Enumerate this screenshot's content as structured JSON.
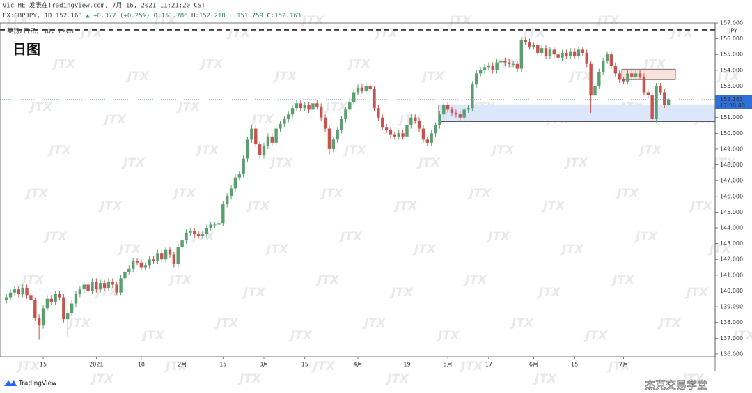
{
  "header": {
    "line1": "Vic-HE 发表在TradingView.com, 7月 16, 2021 11:21:20 CST",
    "symbol": "FX:GBPJPY, 1D",
    "change": "▲ +0.377 (+0.25%)",
    "ohlc_labels": [
      "O:",
      "H:",
      "L:",
      "C:"
    ]
  },
  "watermark": "JTX",
  "footer": {
    "brand": "TradingView",
    "credit": "杰克交易学堂"
  },
  "chart_data": {
    "type": "candlestick",
    "title": "日图",
    "subtitle": "英镑/日元, 1D, FXCM",
    "categories": [
      null,
      null,
      null,
      null,
      null,
      null,
      null,
      null,
      null,
      "15",
      null,
      null,
      null,
      null,
      null,
      null,
      null,
      null,
      null,
      null,
      null,
      null,
      "2021",
      null,
      null,
      null,
      null,
      null,
      null,
      null,
      null,
      null,
      null,
      "18",
      null,
      null,
      null,
      null,
      null,
      null,
      null,
      null,
      null,
      "2月",
      null,
      null,
      null,
      null,
      null,
      null,
      null,
      null,
      null,
      "15",
      null,
      null,
      null,
      null,
      null,
      null,
      null,
      null,
      null,
      "3月",
      null,
      null,
      null,
      null,
      null,
      null,
      null,
      null,
      null,
      "15",
      null,
      null,
      null,
      null,
      null,
      null,
      null,
      null,
      null,
      null,
      null,
      null,
      "4月",
      null,
      null,
      null,
      null,
      null,
      null,
      null,
      null,
      null,
      null,
      null,
      "19",
      null,
      null,
      null,
      null,
      null,
      null,
      null,
      null,
      null,
      "5月",
      null,
      null,
      null,
      null,
      null,
      null,
      null,
      null,
      null,
      "17",
      null,
      null,
      null,
      null,
      null,
      null,
      null,
      null,
      null,
      null,
      "6月",
      null,
      null,
      null,
      null,
      null,
      null,
      null,
      null,
      null,
      "15",
      null,
      null,
      null,
      null,
      null,
      null,
      null,
      null,
      null,
      null,
      null,
      "7月",
      null,
      null,
      null,
      null,
      null,
      null,
      null,
      null,
      null,
      null,
      null
    ],
    "open": [
      139.4,
      139.6,
      139.9,
      140.1,
      139.8,
      140.2,
      139.7,
      139.4,
      138.3,
      137.8,
      138.9,
      139.5,
      139.3,
      139.8,
      139.6,
      138.2,
      138.6,
      139.2,
      139.8,
      140.1,
      140.4,
      140.0,
      140.6,
      140.1,
      140.5,
      140.2,
      140.6,
      140.4,
      139.9,
      140.8,
      141.2,
      141.4,
      141.9,
      141.8,
      141.5,
      141.6,
      142.0,
      141.9,
      142.4,
      142.0,
      142.6,
      142.3,
      141.7,
      142.8,
      143.2,
      143.7,
      143.8,
      143.6,
      143.5,
      143.6,
      144.0,
      144.2,
      144.2,
      144.3,
      145.5,
      146.0,
      146.5,
      147.2,
      147.4,
      148.4,
      149.6,
      150.3,
      149.3,
      148.6,
      149.2,
      149.8,
      149.4,
      150.3,
      150.6,
      150.9,
      151.2,
      151.6,
      151.9,
      151.6,
      151.8,
      151.5,
      151.9,
      151.7,
      151.0,
      150.3,
      149.0,
      149.6,
      150.2,
      150.9,
      151.5,
      152.0,
      152.6,
      152.9,
      152.7,
      153.0,
      152.8,
      151.6,
      151.0,
      150.4,
      150.2,
      149.9,
      149.8,
      150.0,
      149.8,
      150.5,
      151.0,
      150.8,
      150.3,
      149.6,
      149.4,
      150.0,
      150.5,
      151.2,
      151.8,
      151.5,
      151.3,
      151.2,
      151.0,
      151.5,
      151.6,
      153.1,
      153.8,
      154.0,
      154.2,
      154.3,
      154.0,
      154.5,
      154.6,
      154.5,
      154.4,
      154.4,
      154.1,
      155.9,
      155.8,
      155.5,
      155.6,
      155.1,
      155.4,
      154.9,
      155.3,
      155.0,
      154.8,
      155.1,
      154.9,
      155.2,
      154.9,
      155.3,
      155.1,
      154.4,
      152.4,
      153.0,
      153.9,
      154.6,
      155.0,
      154.3,
      153.8,
      153.4,
      153.3,
      153.8,
      153.6,
      153.8,
      153.6,
      152.6,
      152.4,
      150.9,
      153.0,
      152.6,
      151.786
    ],
    "high": [
      139.8,
      140.1,
      140.3,
      140.3,
      140.4,
      140.4,
      139.9,
      139.6,
      138.5,
      139.1,
      139.7,
      139.7,
      140.0,
      140.0,
      139.8,
      138.8,
      139.4,
      140.0,
      140.3,
      140.6,
      140.6,
      140.8,
      140.8,
      140.7,
      140.7,
      140.8,
      140.8,
      140.6,
      141.0,
      141.4,
      141.6,
      142.1,
      142.1,
      142.0,
      141.8,
      142.2,
      142.2,
      142.6,
      142.6,
      142.8,
      142.8,
      142.5,
      143.0,
      143.4,
      143.9,
      144.0,
      144.0,
      143.8,
      143.8,
      144.2,
      144.4,
      144.4,
      144.5,
      145.7,
      146.2,
      146.7,
      147.4,
      147.6,
      148.6,
      149.8,
      150.5,
      150.5,
      149.5,
      149.4,
      150.0,
      150.0,
      150.5,
      150.8,
      151.1,
      151.4,
      151.8,
      152.1,
      152.1,
      152.0,
      152.0,
      152.1,
      152.1,
      151.9,
      151.2,
      150.5,
      149.8,
      150.4,
      151.1,
      151.7,
      152.2,
      152.8,
      153.1,
      153.1,
      153.3,
      153.2,
      153.0,
      151.8,
      151.2,
      150.6,
      150.4,
      150.1,
      150.2,
      150.2,
      150.7,
      151.2,
      151.2,
      151.0,
      150.5,
      149.8,
      150.2,
      150.7,
      151.4,
      152.0,
      152.0,
      151.7,
      151.5,
      151.4,
      151.7,
      151.8,
      153.3,
      154.0,
      154.2,
      154.4,
      154.5,
      154.5,
      154.7,
      154.8,
      154.8,
      154.7,
      154.6,
      154.6,
      156.1,
      156.1,
      156.0,
      155.8,
      155.8,
      155.6,
      155.6,
      155.5,
      155.5,
      155.2,
      155.3,
      155.3,
      155.4,
      155.4,
      155.5,
      155.5,
      155.3,
      154.6,
      153.2,
      154.1,
      154.8,
      155.2,
      155.2,
      154.5,
      154.0,
      153.6,
      154.0,
      154.0,
      154.0,
      154.0,
      153.8,
      152.8,
      152.6,
      153.2,
      153.2,
      152.8,
      152.218
    ],
    "low": [
      139.2,
      139.4,
      139.7,
      139.6,
      139.6,
      139.5,
      139.2,
      138.1,
      136.9,
      137.6,
      138.7,
      139.1,
      139.1,
      139.4,
      138.0,
      137.1,
      138.4,
      139.0,
      139.6,
      139.9,
      139.8,
      139.8,
      139.9,
      139.9,
      140.0,
      140.0,
      140.2,
      139.7,
      139.7,
      140.6,
      141.0,
      141.2,
      141.6,
      141.3,
      141.3,
      141.4,
      141.7,
      141.7,
      141.8,
      141.8,
      142.1,
      141.5,
      141.5,
      142.6,
      143.0,
      143.5,
      143.4,
      143.3,
      143.3,
      143.4,
      143.8,
      144.0,
      144.0,
      144.1,
      145.3,
      145.8,
      146.3,
      147.0,
      147.2,
      148.2,
      149.4,
      149.1,
      148.4,
      148.4,
      149.0,
      149.2,
      149.2,
      150.1,
      150.4,
      150.7,
      151.0,
      151.4,
      151.4,
      151.4,
      151.3,
      151.3,
      151.5,
      150.8,
      150.1,
      148.6,
      148.8,
      149.4,
      150.0,
      150.7,
      151.3,
      151.8,
      152.4,
      152.5,
      152.5,
      152.6,
      151.4,
      150.8,
      150.2,
      150.0,
      149.7,
      149.6,
      149.6,
      149.6,
      149.6,
      150.3,
      150.6,
      150.1,
      149.4,
      149.2,
      149.2,
      149.8,
      150.3,
      151.0,
      151.3,
      151.1,
      151.0,
      150.8,
      150.8,
      151.3,
      151.4,
      152.9,
      153.6,
      153.8,
      154.0,
      153.8,
      153.8,
      154.3,
      154.3,
      154.2,
      154.2,
      153.9,
      153.9,
      155.6,
      155.3,
      155.3,
      154.9,
      154.9,
      154.7,
      154.7,
      154.8,
      154.6,
      154.6,
      154.7,
      154.7,
      154.7,
      154.7,
      154.9,
      154.2,
      151.3,
      152.2,
      152.8,
      153.7,
      154.4,
      154.1,
      153.6,
      153.2,
      153.1,
      153.1,
      153.4,
      153.4,
      153.4,
      152.4,
      152.2,
      150.6,
      150.7,
      152.4,
      151.6,
      151.759
    ],
    "close": [
      139.6,
      139.9,
      140.1,
      139.8,
      140.2,
      139.7,
      139.4,
      138.3,
      137.8,
      138.9,
      139.5,
      139.3,
      139.8,
      139.6,
      138.2,
      138.6,
      139.2,
      139.8,
      140.1,
      140.4,
      140.0,
      140.6,
      140.1,
      140.5,
      140.2,
      140.6,
      140.4,
      139.9,
      140.8,
      141.2,
      141.4,
      141.9,
      141.8,
      141.5,
      141.6,
      142.0,
      141.9,
      142.4,
      142.0,
      142.6,
      142.3,
      141.7,
      142.8,
      143.2,
      143.7,
      143.8,
      143.6,
      143.5,
      143.6,
      144.0,
      144.2,
      144.2,
      144.3,
      145.5,
      146.0,
      146.5,
      147.2,
      147.4,
      148.4,
      149.6,
      150.3,
      149.3,
      148.6,
      149.2,
      149.8,
      149.4,
      150.3,
      150.6,
      150.9,
      151.2,
      151.6,
      151.9,
      151.6,
      151.8,
      151.5,
      151.9,
      151.7,
      151.0,
      150.3,
      149.0,
      149.6,
      150.2,
      150.9,
      151.5,
      152.0,
      152.6,
      152.9,
      152.7,
      153.0,
      152.8,
      151.6,
      151.0,
      150.4,
      150.2,
      149.9,
      149.8,
      150.0,
      149.8,
      150.5,
      151.0,
      150.8,
      150.3,
      149.6,
      149.4,
      150.0,
      150.5,
      151.2,
      151.8,
      151.5,
      151.3,
      151.2,
      151.0,
      151.5,
      151.6,
      153.1,
      153.8,
      154.0,
      154.2,
      154.3,
      154.0,
      154.5,
      154.6,
      154.5,
      154.4,
      154.4,
      154.1,
      155.9,
      155.8,
      155.5,
      155.6,
      155.1,
      155.4,
      154.9,
      155.3,
      155.0,
      154.8,
      155.1,
      154.9,
      155.2,
      154.9,
      155.3,
      155.1,
      154.4,
      152.4,
      153.0,
      153.9,
      154.6,
      155.0,
      154.3,
      153.8,
      153.4,
      153.3,
      153.8,
      153.6,
      153.8,
      153.6,
      152.6,
      152.4,
      150.9,
      153.0,
      152.6,
      151.8,
      152.163
    ],
    "up_color": "#5b9e70",
    "down_color": "#c8524d",
    "ylim": [
      135.82,
      157.0
    ],
    "yticks": [
      {
        "value": 136,
        "label": "136.000"
      },
      {
        "value": 137,
        "label": "137.000"
      },
      {
        "value": 138,
        "label": "138.000"
      },
      {
        "value": 139,
        "label": "139.000"
      },
      {
        "value": 140,
        "label": "140.000"
      },
      {
        "value": 141,
        "label": "141.000"
      },
      {
        "value": 142,
        "label": "142.000"
      },
      {
        "value": 143,
        "label": "143.000"
      },
      {
        "value": 144,
        "label": "144.000"
      },
      {
        "value": 145,
        "label": "145.000"
      },
      {
        "value": 146,
        "label": "146.000"
      },
      {
        "value": 147,
        "label": "147.000"
      },
      {
        "value": 148,
        "label": "148.000"
      },
      {
        "value": 149,
        "label": "149.000"
      },
      {
        "value": 150,
        "label": "150.000"
      },
      {
        "value": 151,
        "label": "151.000"
      },
      {
        "value": 153,
        "label": "153.000"
      },
      {
        "value": 154,
        "label": "154.000"
      },
      {
        "value": 155,
        "label": "155.000"
      },
      {
        "value": 156,
        "label": "156.000"
      },
      {
        "value": 157,
        "label": "157.000"
      }
    ],
    "grid": false,
    "currency": "JPY",
    "countdown": "17:38:40",
    "price_tag_color": "#2f6fd6",
    "reference_line": 156.56,
    "zones": [
      {
        "low": 150.74,
        "high": 151.81,
        "color": "#dce7fb",
        "stroke": "#333"
      },
      {
        "low": 153.41,
        "high": 154.07,
        "color": "#fbe1dc",
        "stroke": "#555"
      }
    ]
  }
}
